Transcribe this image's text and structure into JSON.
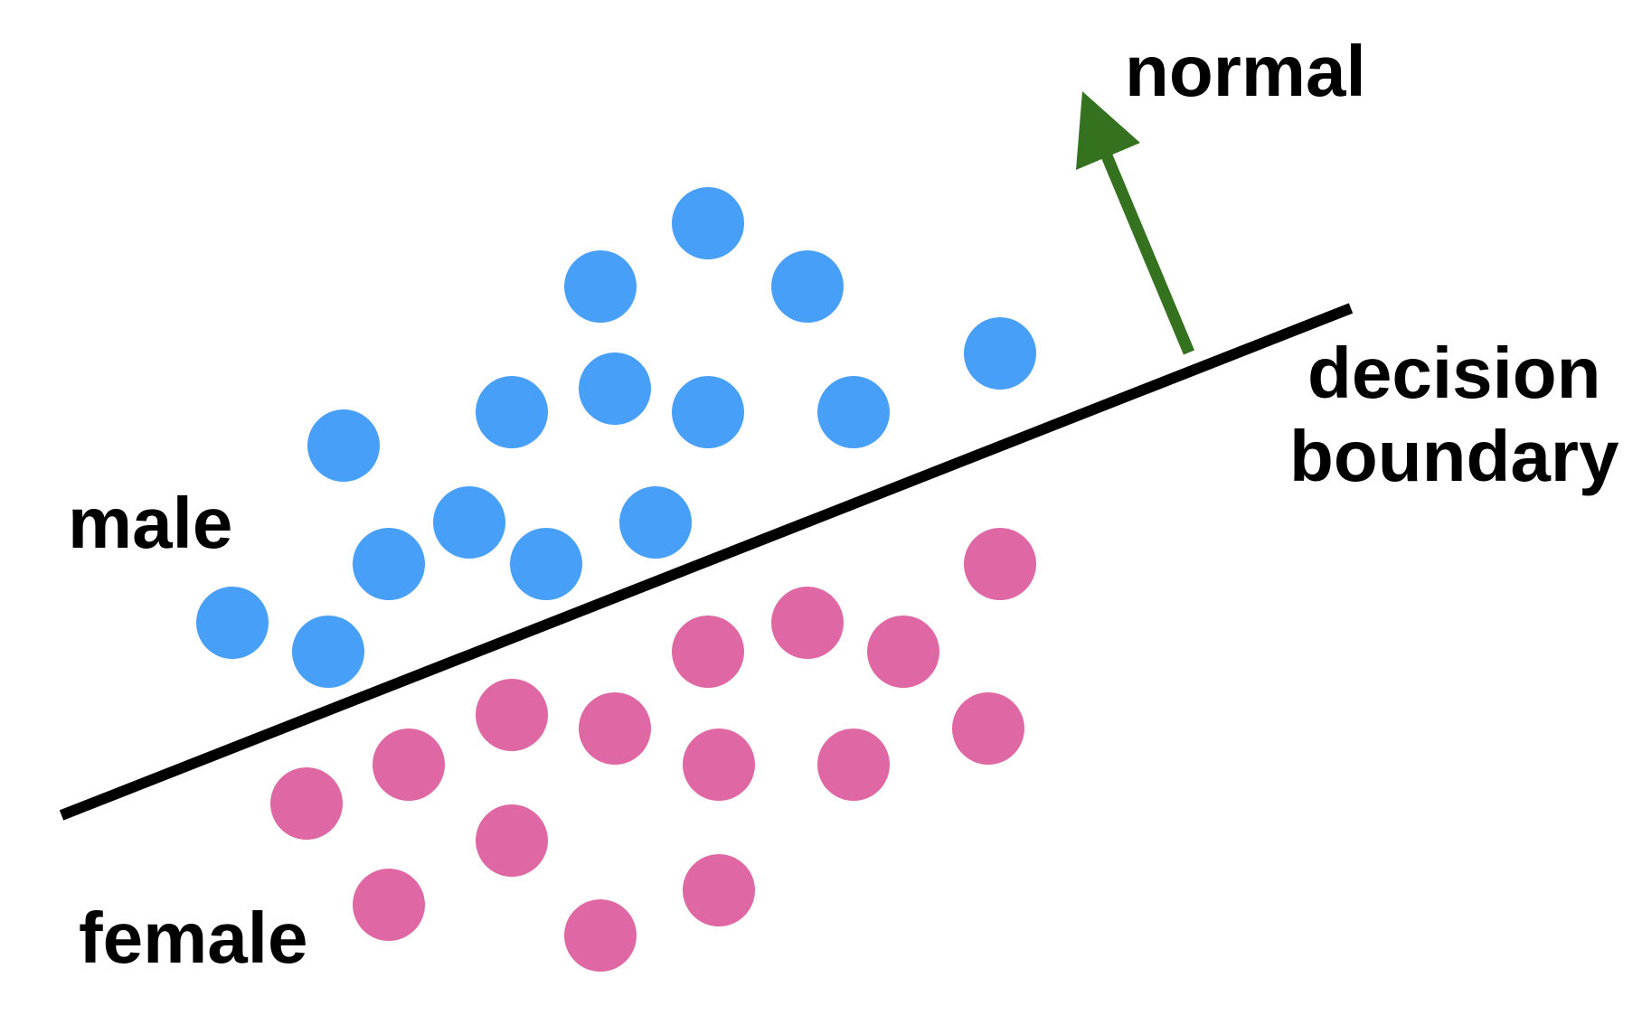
{
  "labels": {
    "normal": "normal",
    "decision_line1": "decision",
    "decision_line2": "boundary",
    "male": "male",
    "female": "female"
  },
  "colors": {
    "male_points": "#479ff8",
    "female_points": "#df68a4",
    "boundary_line": "#000000",
    "normal_arrow": "#35721f",
    "text": "#000000"
  },
  "icons": {
    "points": "filled-circle",
    "normal": "arrow-up-right"
  }
}
